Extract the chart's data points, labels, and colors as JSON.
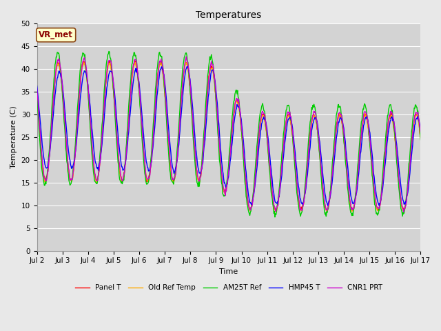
{
  "title": "Temperatures",
  "xlabel": "Time",
  "ylabel": "Temperature (C)",
  "ylim": [
    0,
    50
  ],
  "xlim": [
    0,
    15
  ],
  "annotation": "VR_met",
  "series": {
    "Panel T": {
      "color": "#ff0000",
      "lw": 1.2
    },
    "Old Ref Temp": {
      "color": "#ffaa00",
      "lw": 1.2
    },
    "AM25T Ref": {
      "color": "#00cc00",
      "lw": 1.2
    },
    "HMP45 T": {
      "color": "#0000ff",
      "lw": 1.2
    },
    "CNR1 PRT": {
      "color": "#cc00cc",
      "lw": 1.2
    }
  },
  "xticks": [
    "Jul 2",
    "Jul 3",
    "Jul 4",
    "Jul 5",
    "Jul 6",
    "Jul 7",
    "Jul 8",
    "Jul 9",
    "Jul 10",
    "Jul 11",
    "Jul 12",
    "Jul 13",
    "Jul 14",
    "Jul 15",
    "Jul 16",
    "Jul 17"
  ],
  "figsize": [
    6.4,
    4.8
  ],
  "dpi": 100,
  "bg_color": "#e8e8e8",
  "plot_bg": "#d3d3d3",
  "grid_color": "#ffffff",
  "title_fontsize": 10,
  "label_fontsize": 8,
  "tick_fontsize": 7.5
}
